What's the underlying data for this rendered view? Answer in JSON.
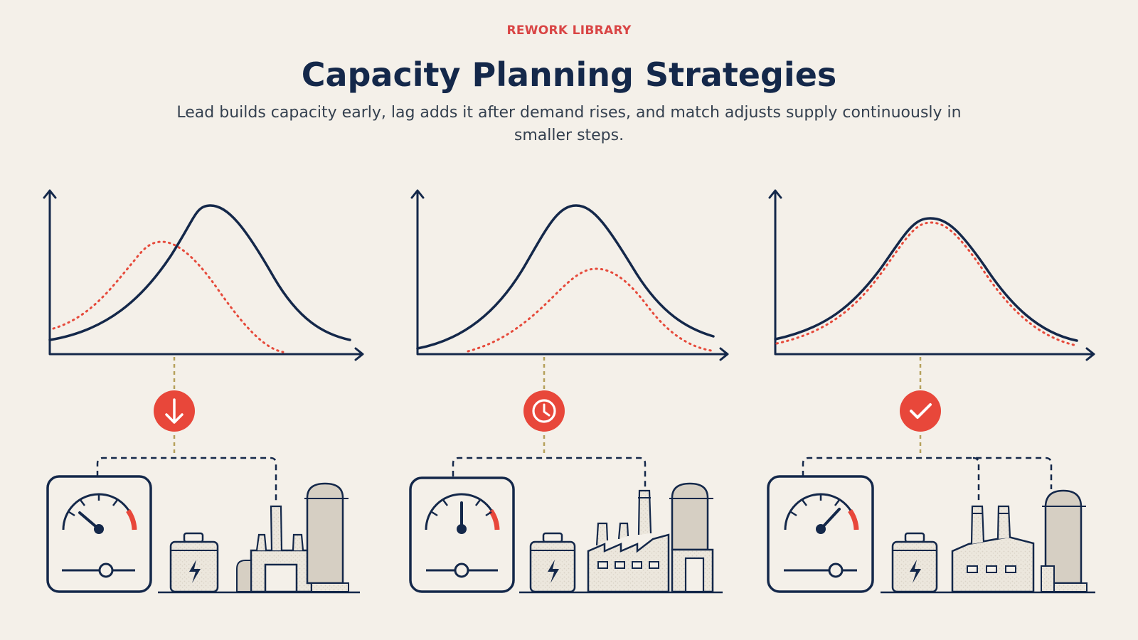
{
  "header": {
    "eyebrow": "REWORK LIBRARY",
    "title": "Capacity Planning Strategies",
    "subtitle": "Lead builds capacity early, lag adds it after demand rises, and match adjusts supply continuously in smaller steps."
  },
  "colors": {
    "background": "#f4f0e9",
    "navy": "#14284a",
    "accent_red": "#e8473a",
    "dotted_curve": "#e64a3b",
    "dashed_connector": "#b5a05a"
  },
  "panels": [
    {
      "strategy": "lead",
      "badge_icon": "arrow-down-icon",
      "capacity_relation": "capacity curve peaks before demand"
    },
    {
      "strategy": "lag",
      "badge_icon": "clock-icon",
      "capacity_relation": "capacity curve peaks after demand"
    },
    {
      "strategy": "match",
      "badge_icon": "checkmark-icon",
      "capacity_relation": "capacity curve tracks demand"
    }
  ],
  "icons": [
    "gauge-icon",
    "battery-icon",
    "factory-icon",
    "silo-icon"
  ]
}
